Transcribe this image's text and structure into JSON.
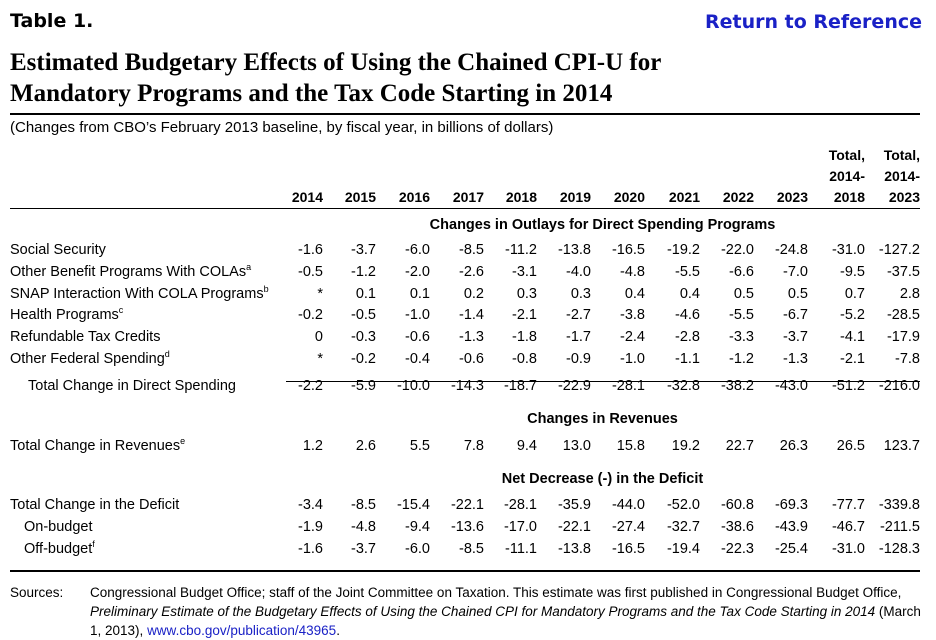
{
  "table_label": "Table 1.",
  "return_link": "Return to Reference",
  "title_line1": "Estimated Budgetary Effects of Using the Chained CPI-U for",
  "title_line2": "Mandatory Programs and the Tax Code Starting in 2014",
  "subtitle": "(Changes from CBO’s February 2013 baseline, by fiscal year, in billions of dollars)",
  "columns": [
    "2014",
    "2015",
    "2016",
    "2017",
    "2018",
    "2019",
    "2020",
    "2021",
    "2022",
    "2023"
  ],
  "total_col_1": {
    "line1": "Total,",
    "line2": "2014-",
    "line3": "2018"
  },
  "total_col_2": {
    "line1": "Total,",
    "line2": "2014-",
    "line3": "2023"
  },
  "sections": {
    "outlays": "Changes in Outlays for Direct Spending Programs",
    "revenues": "Changes in Revenues",
    "deficit": "Net Decrease (-) in the Deficit"
  },
  "rows": [
    {
      "label": "Social Security",
      "note": "",
      "values": [
        "-1.6",
        "-3.7",
        "-6.0",
        "-8.5",
        "-11.2",
        "-13.8",
        "-16.5",
        "-19.2",
        "-22.0",
        "-24.8",
        "-31.0",
        "-127.2"
      ]
    },
    {
      "label": "Other Benefit Programs With COLAs",
      "note": "a",
      "values": [
        "-0.5",
        "-1.2",
        "-2.0",
        "-2.6",
        "-3.1",
        "-4.0",
        "-4.8",
        "-5.5",
        "-6.6",
        "-7.0",
        "-9.5",
        "-37.5"
      ]
    },
    {
      "label": "SNAP Interaction With COLA Programs",
      "note": "b",
      "values": [
        "*",
        "0.1",
        "0.1",
        "0.2",
        "0.3",
        "0.3",
        "0.4",
        "0.4",
        "0.5",
        "0.5",
        "0.7",
        "2.8"
      ]
    },
    {
      "label": "Health Programs",
      "note": "c",
      "values": [
        "-0.2",
        "-0.5",
        "-1.0",
        "-1.4",
        "-2.1",
        "-2.7",
        "-3.8",
        "-4.6",
        "-5.5",
        "-6.7",
        "-5.2",
        "-28.5"
      ]
    },
    {
      "label": "Refundable Tax Credits",
      "note": "",
      "values": [
        "0",
        "-0.3",
        "-0.6",
        "-1.3",
        "-1.8",
        "-1.7",
        "-2.4",
        "-2.8",
        "-3.3",
        "-3.7",
        "-4.1",
        "-17.9"
      ]
    },
    {
      "label": "Other Federal Spending",
      "note": "d",
      "values": [
        "*",
        "-0.2",
        "-0.4",
        "-0.6",
        "-0.8",
        "-0.9",
        "-1.0",
        "-1.1",
        "-1.2",
        "-1.3",
        "-2.1",
        "-7.8"
      ]
    },
    {
      "label": "Total Change in Direct Spending",
      "note": "",
      "values": [
        "-2.2",
        "-5.9",
        "-10.0",
        "-14.3",
        "-18.7",
        "-22.9",
        "-28.1",
        "-32.8",
        "-38.2",
        "-43.0",
        "-51.2",
        "-216.0"
      ]
    },
    {
      "label": "Total Change in Revenues",
      "note": "e",
      "values": [
        "1.2",
        "2.6",
        "5.5",
        "7.8",
        "9.4",
        "13.0",
        "15.8",
        "19.2",
        "22.7",
        "26.3",
        "26.5",
        "123.7"
      ]
    },
    {
      "label": "Total Change in the Deficit",
      "note": "",
      "values": [
        "-3.4",
        "-8.5",
        "-15.4",
        "-22.1",
        "-28.1",
        "-35.9",
        "-44.0",
        "-52.0",
        "-60.8",
        "-69.3",
        "-77.7",
        "-339.8"
      ]
    },
    {
      "label": "On-budget",
      "note": "",
      "values": [
        "-1.9",
        "-4.8",
        "-9.4",
        "-13.6",
        "-17.0",
        "-22.1",
        "-27.4",
        "-32.7",
        "-38.6",
        "-43.9",
        "-46.7",
        "-211.5"
      ]
    },
    {
      "label": "Off-budget",
      "note": "f",
      "values": [
        "-1.6",
        "-3.7",
        "-6.0",
        "-8.5",
        "-11.1",
        "-13.8",
        "-16.5",
        "-19.4",
        "-22.3",
        "-25.4",
        "-31.0",
        "-128.3"
      ]
    }
  ],
  "sources_label": "Sources:",
  "sources_text": "Congressional Budget Office; staff of the Joint Committee on Taxation. This estimate was first published in Congressional Budget Office,",
  "sources_italic": "Preliminary Estimate of the Budgetary Effects of Using the Chained CPI for Mandatory Programs and the Tax Code Starting in 2014",
  "sources_date": "(March 1, 2013),",
  "sources_link": "www.cbo.gov/publication/43965",
  "sources_end": "."
}
